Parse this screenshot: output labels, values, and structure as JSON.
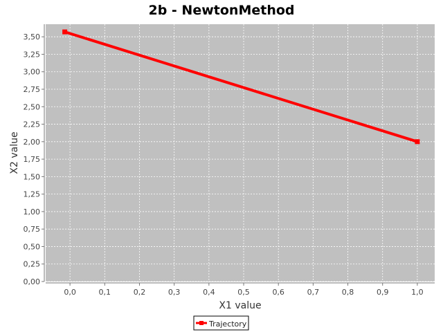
{
  "chart_data": {
    "type": "line",
    "title": "2b - NewtonMethod",
    "xlabel": "X1 value",
    "ylabel": "X2 value",
    "xlim": [
      -0.07,
      1.05
    ],
    "ylim": [
      0.0,
      3.68
    ],
    "x_ticks": [
      "0,0",
      "0,1",
      "0,2",
      "0,3",
      "0,4",
      "0,5",
      "0,6",
      "0,7",
      "0,8",
      "0,9",
      "1,0"
    ],
    "y_ticks": [
      "0,00",
      "0,25",
      "0,50",
      "0,75",
      "1,00",
      "1,25",
      "1,50",
      "1,75",
      "2,00",
      "2,25",
      "2,50",
      "2,75",
      "3,00",
      "3,25",
      "3,50"
    ],
    "grid": true,
    "legend_position": "bottom",
    "series": [
      {
        "name": "Trajectory",
        "color": "#ff0000",
        "x": [
          -0.015,
          1.0
        ],
        "y": [
          3.57,
          2.0
        ]
      }
    ],
    "plot_background": "#c0c0c0",
    "grid_color": "#ffffff"
  }
}
